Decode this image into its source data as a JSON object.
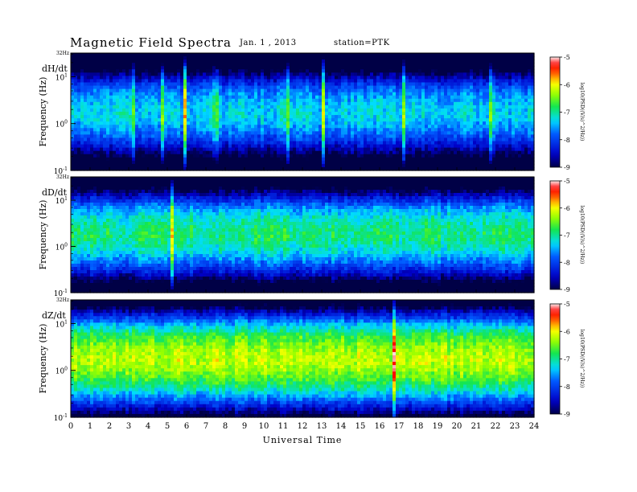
{
  "header": {
    "title": "Magnetic  Field  Spectra",
    "date": "Jan.  1  , 2013",
    "station": "station=PTK"
  },
  "chart_data": [
    {
      "type": "heatmap",
      "panel_label": "dH/dt",
      "ylabel": "Frequency  (Hz)",
      "y_top_label": "32Hz",
      "y_ticks": [
        {
          "base": "10",
          "exp": "1"
        },
        {
          "base": "10",
          "exp": "0"
        },
        {
          "base": "10",
          "exp": "-1"
        }
      ],
      "ylim": [
        0.1,
        32
      ],
      "xlim": [
        0,
        24
      ],
      "colorbar_label": "log10(PSD((V/s)^2/Hz))",
      "colorbar_ticks": [
        "-5",
        "-6",
        "-7",
        "-8",
        "-9"
      ],
      "colorbar_range": [
        -9,
        -5
      ],
      "band_center_hz": 1.5,
      "band_level": -7.3,
      "bursts_ut": [
        3.2,
        4.8,
        5.9,
        7.5,
        11.2,
        13.1,
        17.3,
        21.8
      ]
    },
    {
      "type": "heatmap",
      "panel_label": "dD/dt",
      "ylabel": "Frequency  (Hz)",
      "y_top_label": "32Hz",
      "y_ticks": [
        {
          "base": "10",
          "exp": "1"
        },
        {
          "base": "10",
          "exp": "0"
        },
        {
          "base": "10",
          "exp": "-1"
        }
      ],
      "ylim": [
        0.1,
        32
      ],
      "xlim": [
        0,
        24
      ],
      "colorbar_label": "log10(PSD((V/s)^2/Hz))",
      "colorbar_ticks": [
        "-5",
        "-6",
        "-7",
        "-8",
        "-9"
      ],
      "colorbar_range": [
        -9,
        -5
      ],
      "band_center_hz": 1.6,
      "band_level": -6.9,
      "bursts_ut": [
        5.3
      ]
    },
    {
      "type": "heatmap",
      "panel_label": "dZ/dt",
      "ylabel": "Frequency  (Hz)",
      "y_top_label": "32Hz",
      "y_ticks": [
        {
          "base": "10",
          "exp": "1"
        },
        {
          "base": "10",
          "exp": "0"
        },
        {
          "base": "10",
          "exp": "-1"
        }
      ],
      "ylim": [
        0.1,
        32
      ],
      "xlim": [
        0,
        24
      ],
      "colorbar_label": "log10(PSD((V/s)^2/Hz))",
      "colorbar_ticks": [
        "-5",
        "-6",
        "-7",
        "-8",
        "-9"
      ],
      "colorbar_range": [
        -9,
        -5
      ],
      "band_center_hz": 1.5,
      "band_level": -6.2,
      "bursts_ut": [
        16.8
      ]
    }
  ],
  "x_axis": {
    "label": "Universal Time",
    "ticks": [
      "0",
      "1",
      "2",
      "3",
      "4",
      "5",
      "6",
      "7",
      "8",
      "9",
      "10",
      "11",
      "12",
      "13",
      "14",
      "15",
      "16",
      "17",
      "18",
      "19",
      "20",
      "21",
      "22",
      "23",
      "24"
    ]
  }
}
